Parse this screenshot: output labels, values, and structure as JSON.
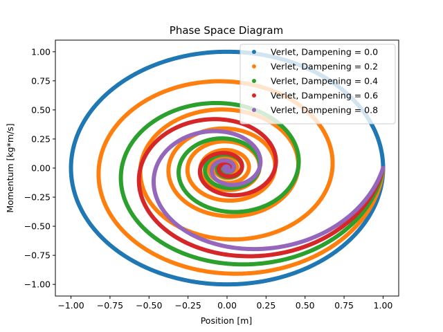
{
  "chart_data": {
    "type": "scatter",
    "title": "Phase Space Diagram",
    "xlabel": "Position [m]",
    "ylabel": "Momentum [kg*m/s]",
    "xlim": [
      -1.1,
      1.1
    ],
    "ylim": [
      -1.1,
      1.1
    ],
    "x_ticks": [
      -1.0,
      -0.75,
      -0.5,
      -0.25,
      0.0,
      0.25,
      0.5,
      0.75,
      1.0
    ],
    "x_tick_labels": [
      "−1.00",
      "−0.75",
      "−0.50",
      "−0.25",
      "0.00",
      "0.25",
      "0.50",
      "0.75",
      "1.00"
    ],
    "y_ticks": [
      1.0,
      0.75,
      0.5,
      0.25,
      0.0,
      -0.25,
      -0.5,
      -0.75,
      -1.0
    ],
    "y_tick_labels": [
      "1.00",
      "0.75",
      "0.50",
      "0.25",
      "0.00",
      "−0.25",
      "−0.50",
      "−0.75",
      "−1.00"
    ],
    "grid": false,
    "legend_position": "top-right",
    "series": [
      {
        "name": "Verlet, Dampening = 0.0",
        "color": "#1f77b4",
        "dampening": 0.0
      },
      {
        "name": "Verlet, Dampening = 0.2",
        "color": "#ff7f0e",
        "dampening": 0.2
      },
      {
        "name": "Verlet, Dampening = 0.4",
        "color": "#2ca02c",
        "dampening": 0.4
      },
      {
        "name": "Verlet, Dampening = 0.6",
        "color": "#d62728",
        "dampening": 0.6
      },
      {
        "name": "Verlet, Dampening = 0.8",
        "color": "#9467bd",
        "dampening": 0.8
      }
    ]
  }
}
